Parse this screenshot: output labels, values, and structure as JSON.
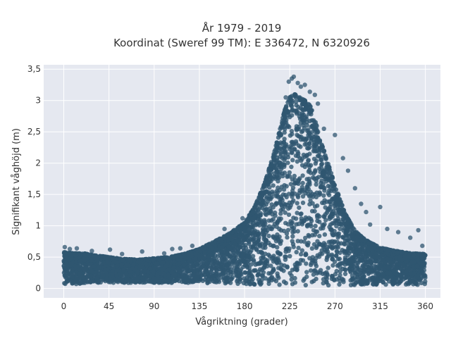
{
  "chart_data": {
    "type": "scatter",
    "title_lines": [
      "År 1979 - 2019",
      "Koordinat (Sweref 99 TM): E 336472, N 6320926"
    ],
    "xlabel": "Vågriktning (grader)",
    "ylabel": "Signifikant våghöjd (m)",
    "xlim": [
      -20,
      375
    ],
    "ylim": [
      -0.15,
      3.57
    ],
    "x_ticks": [
      0,
      45,
      90,
      135,
      180,
      225,
      270,
      315,
      360
    ],
    "x_tick_labels": [
      "0",
      "45",
      "90",
      "135",
      "180",
      "225",
      "270",
      "315",
      "360"
    ],
    "y_ticks": [
      0,
      0.5,
      1,
      1.5,
      2,
      2.5,
      3,
      3.5
    ],
    "y_tick_labels": [
      "0",
      "0,5",
      "1",
      "1,5",
      "2",
      "2,5",
      "3",
      "3,5"
    ],
    "grid": true,
    "legend": "none",
    "colors": {
      "marker": "#2f5670",
      "plot_background": "#e5e8f0",
      "grid": "#ffffff",
      "text": "#333333"
    },
    "series": [
      {
        "envelope": {
          "x": [
            0,
            10,
            20,
            30,
            45,
            60,
            75,
            90,
            105,
            120,
            135,
            150,
            165,
            180,
            190,
            200,
            210,
            220,
            225,
            230,
            235,
            240,
            245,
            250,
            260,
            270,
            280,
            290,
            300,
            315,
            330,
            345,
            360
          ],
          "y_upper": [
            0.58,
            0.56,
            0.56,
            0.53,
            0.5,
            0.47,
            0.46,
            0.48,
            0.5,
            0.55,
            0.63,
            0.75,
            0.88,
            1.05,
            1.3,
            1.68,
            2.2,
            2.85,
            3.05,
            3.1,
            3.05,
            3.0,
            2.95,
            2.7,
            2.15,
            1.65,
            1.2,
            0.92,
            0.78,
            0.65,
            0.6,
            0.56,
            0.55
          ],
          "y_lower": [
            0.06,
            0.07,
            0.08,
            0.08,
            0.09,
            0.09,
            0.09,
            0.09,
            0.09,
            0.09,
            0.09,
            0.08,
            0.08,
            0.07,
            0.06,
            0.06,
            0.05,
            0.05,
            0.05,
            0.05,
            0.05,
            0.05,
            0.05,
            0.05,
            0.05,
            0.05,
            0.05,
            0.05,
            0.06,
            0.06,
            0.06,
            0.06,
            0.06
          ]
        },
        "points": [
          [
            1,
            0.66
          ],
          [
            6,
            0.63
          ],
          [
            13,
            0.64
          ],
          [
            28,
            0.6
          ],
          [
            46,
            0.62
          ],
          [
            58,
            0.55
          ],
          [
            78,
            0.59
          ],
          [
            100,
            0.56
          ],
          [
            108,
            0.63
          ],
          [
            116,
            0.64
          ],
          [
            128,
            0.68
          ],
          [
            160,
            0.95
          ],
          [
            178,
            1.12
          ],
          [
            197,
            1.52
          ],
          [
            207,
            1.9
          ],
          [
            212,
            2.25
          ],
          [
            218,
            2.6
          ],
          [
            221,
            3.05
          ],
          [
            224,
            3.3
          ],
          [
            227,
            3.35
          ],
          [
            229,
            3.38
          ],
          [
            233,
            3.28
          ],
          [
            236,
            3.22
          ],
          [
            240,
            3.25
          ],
          [
            245,
            3.14
          ],
          [
            250,
            3.09
          ],
          [
            253,
            2.95
          ],
          [
            259,
            2.55
          ],
          [
            270,
            2.45
          ],
          [
            278,
            2.08
          ],
          [
            283,
            1.88
          ],
          [
            290,
            1.6
          ],
          [
            296,
            1.35
          ],
          [
            301,
            1.22
          ],
          [
            305,
            1.02
          ],
          [
            315,
            1.3
          ],
          [
            322,
            0.95
          ],
          [
            333,
            0.9
          ],
          [
            345,
            0.81
          ],
          [
            353,
            0.93
          ],
          [
            357,
            0.68
          ]
        ]
      }
    ]
  }
}
